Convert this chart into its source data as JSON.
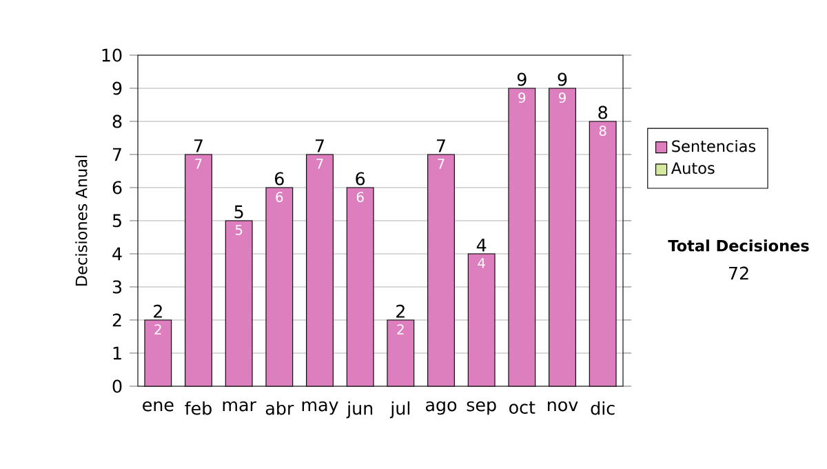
{
  "chart_data": {
    "type": "bar",
    "ylabel": "Decisiones Anual",
    "categories": [
      "ene",
      "feb",
      "mar",
      "abr",
      "may",
      "jun",
      "jul",
      "ago",
      "sep",
      "oct",
      "nov",
      "dic"
    ],
    "series": [
      {
        "name": "Sentencias",
        "color": "#dd7fbf",
        "values": [
          2,
          7,
          5,
          6,
          7,
          6,
          2,
          7,
          4,
          9,
          9,
          8
        ],
        "value_labels": [
          "2",
          "7",
          "5",
          "6",
          "7",
          "6",
          "2",
          "7",
          "4",
          "9",
          "9",
          "8"
        ]
      },
      {
        "name": "Autos",
        "color": "#d6e8a0",
        "values": [
          null,
          null,
          null,
          null,
          null,
          null,
          null,
          null,
          null,
          null,
          null,
          null
        ]
      }
    ],
    "totals": [
      "2",
      "7",
      "5",
      "6",
      "7",
      "6",
      "2",
      "7",
      "4",
      "9",
      "9",
      "8"
    ],
    "ylim": [
      0,
      10
    ],
    "yticks": [
      0,
      1,
      2,
      3,
      4,
      5,
      6,
      7,
      8,
      9,
      10
    ],
    "grid": "y",
    "legend": "right",
    "annotations": [
      "Total Decisiones",
      "72"
    ]
  }
}
